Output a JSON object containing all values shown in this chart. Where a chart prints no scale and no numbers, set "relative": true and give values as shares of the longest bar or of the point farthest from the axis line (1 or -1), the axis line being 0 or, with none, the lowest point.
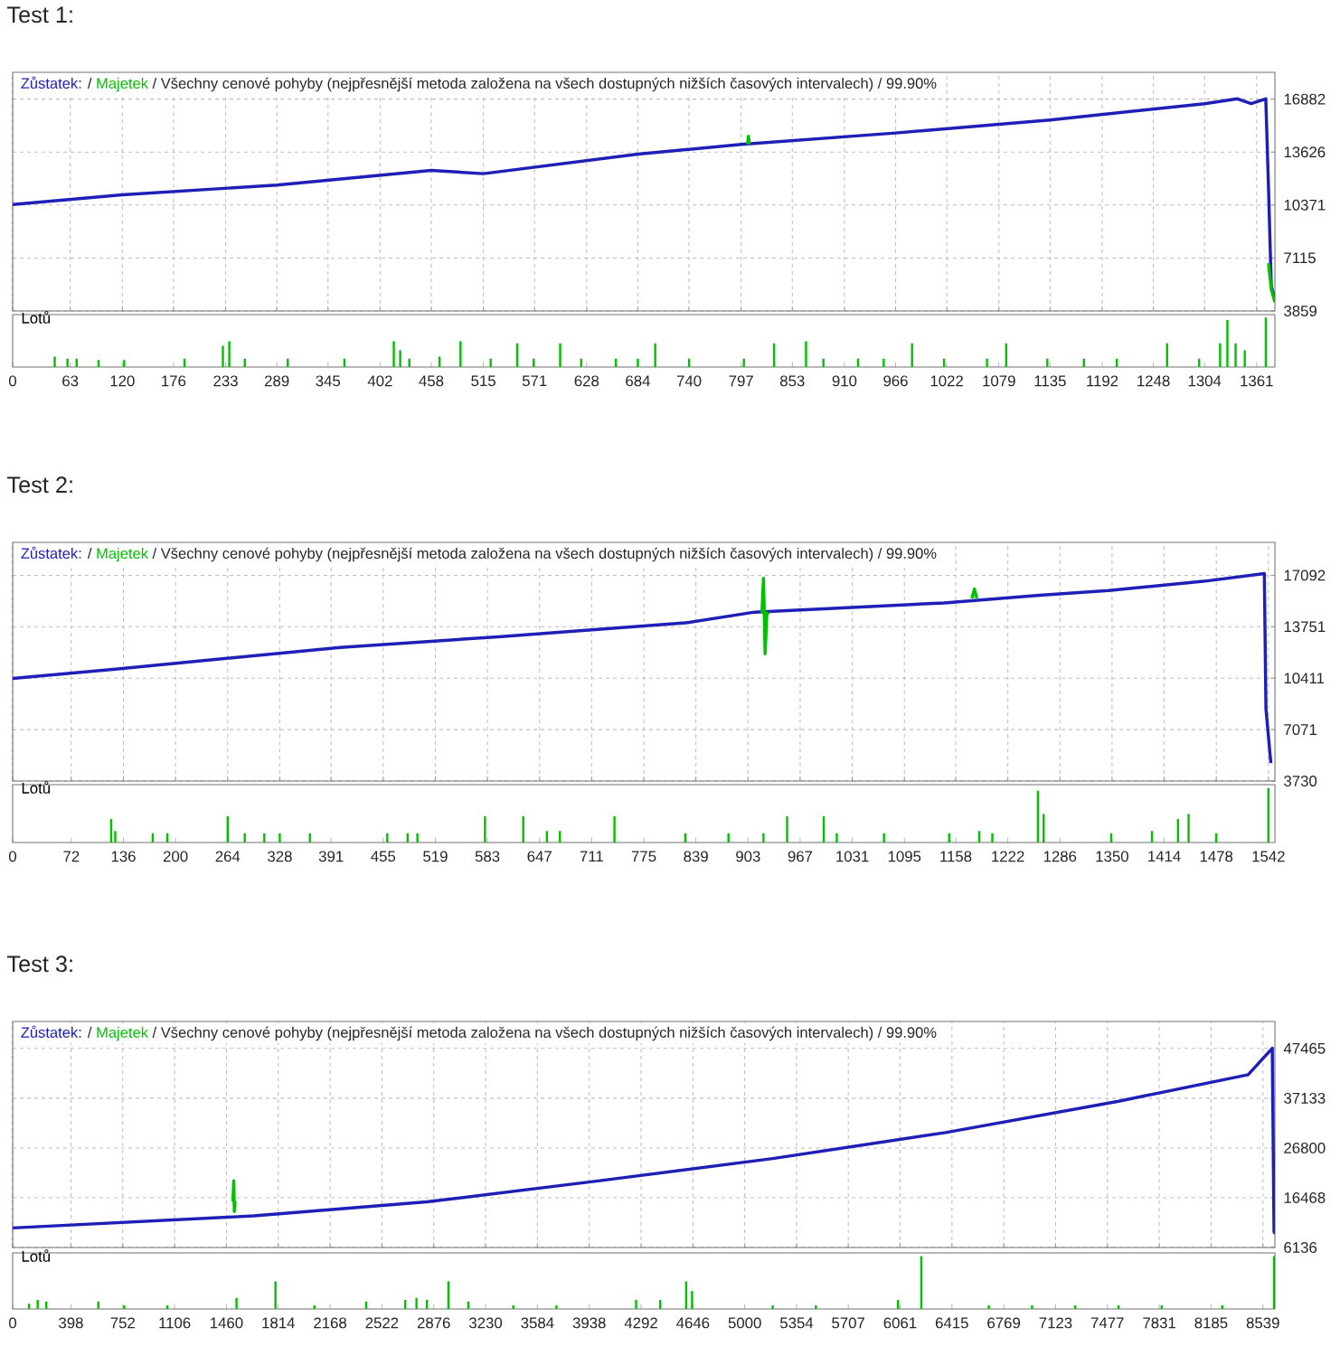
{
  "chart_data": [
    {
      "type": "line",
      "title": "Test 1:",
      "annotations": [
        "/"
      ],
      "subtitle": "/ Všechny cenové pohyby (nejpřesnější metoda založena na všech dostupných nižších časových intervalech) / 99.90%",
      "legend": "top left",
      "grid": true,
      "tick_labels": "y",
      "xlim": [
        0,
        1381
      ],
      "xticks": [
        0,
        63,
        120,
        176,
        233,
        289,
        345,
        402,
        458,
        515,
        571,
        628,
        684,
        740,
        797,
        853,
        910,
        966,
        1022,
        1079,
        1135,
        1192,
        1248,
        1304,
        1361
      ],
      "ylim": [
        3859,
        18530
      ],
      "yticks": [
        3859,
        7115,
        10371,
        13626,
        16882
      ],
      "series": [
        {
          "name": "Zůstatek:",
          "color": "#1f1fb8",
          "x": [
            0,
            120,
            289,
            458,
            515,
            684,
            797,
            966,
            1135,
            1304,
            1340,
            1355,
            1371,
            1374,
            1377,
            1381
          ],
          "values": [
            10400,
            11000,
            11600,
            12500,
            12300,
            13500,
            14100,
            14800,
            15600,
            16600,
            16900,
            16600,
            16900,
            11400,
            5400,
            4500
          ]
        },
        {
          "name": "Majetek",
          "color": "#00c000",
          "x": [
            804,
            805,
            806,
            1000,
            1374,
            1377,
            1381
          ],
          "values": [
            14100,
            14600,
            14100,
            null,
            6800,
            5200,
            4400
          ]
        }
      ]
    },
    {
      "type": "bar",
      "title": "Lotů",
      "relative": true,
      "color": "#00c000",
      "tick_labels": "x",
      "xlim": [
        0,
        1381
      ],
      "xticks": [
        0,
        63,
        120,
        176,
        233,
        289,
        345,
        402,
        458,
        515,
        571,
        628,
        684,
        740,
        797,
        853,
        910,
        966,
        1022,
        1079,
        1135,
        1192,
        1248,
        1304,
        1361
      ],
      "x": [
        46,
        60,
        70,
        94,
        122,
        188,
        230,
        237,
        254,
        301,
        363,
        417,
        424,
        434,
        467,
        490,
        523,
        552,
        570,
        599,
        622,
        660,
        684,
        703,
        740,
        800,
        833,
        868,
        887,
        925,
        953,
        984,
        1019,
        1066,
        1087,
        1132,
        1172,
        1208,
        1263,
        1298,
        1321,
        1329,
        1338,
        1348,
        1371
      ],
      "values": [
        0.21,
        0.17,
        0.17,
        0.14,
        0.14,
        0.17,
        0.43,
        0.52,
        0.17,
        0.17,
        0.17,
        0.52,
        0.34,
        0.17,
        0.21,
        0.52,
        0.17,
        0.48,
        0.17,
        0.48,
        0.17,
        0.17,
        0.17,
        0.48,
        0.17,
        0.17,
        0.48,
        0.52,
        0.17,
        0.17,
        0.17,
        0.48,
        0.17,
        0.17,
        0.48,
        0.17,
        0.17,
        0.17,
        0.48,
        0.17,
        0.48,
        0.95,
        0.48,
        0.34,
        1
      ]
    },
    {
      "type": "line",
      "title": "Test 2:",
      "annotations": [
        "/"
      ],
      "subtitle": "/ Všechny cenové pohyby (nejpřesnější metoda založena na všech dostupných nižších časových intervalech) / 99.90%",
      "legend": "top left",
      "grid": true,
      "tick_labels": "y",
      "xlim": [
        0,
        1550
      ],
      "xticks": [
        0,
        72,
        136,
        200,
        264,
        328,
        391,
        455,
        519,
        583,
        647,
        711,
        775,
        839,
        903,
        967,
        1031,
        1095,
        1158,
        1222,
        1286,
        1350,
        1414,
        1478,
        1542
      ],
      "ylim": [
        3730,
        19230
      ],
      "yticks": [
        3730,
        7071,
        10411,
        13751,
        17092
      ],
      "series": [
        {
          "name": "Zůstatek:",
          "color": "#1f1fb8",
          "x": [
            0,
            126,
            402,
            596,
            826,
            911,
            1144,
            1261,
            1346,
            1462,
            1537,
            1539,
            1545
          ],
          "values": [
            10400,
            11000,
            12400,
            13100,
            14000,
            14700,
            15300,
            15800,
            16100,
            16700,
            17200,
            8400,
            4900
          ]
        },
        {
          "name": "Majetek",
          "color": "#00c000",
          "x": [
            920,
            922,
            924,
            926,
            928,
            1050,
            1178,
            1181,
            1184
          ],
          "values": [
            14600,
            16900,
            12000,
            14500,
            14700,
            null,
            15600,
            16200,
            15600
          ]
        }
      ]
    },
    {
      "type": "bar",
      "title": "Lotů",
      "relative": true,
      "color": "#00c000",
      "tick_labels": "x",
      "xlim": [
        0,
        1550
      ],
      "xticks": [
        0,
        72,
        136,
        200,
        264,
        328,
        391,
        455,
        519,
        583,
        647,
        711,
        775,
        839,
        903,
        967,
        1031,
        1095,
        1158,
        1222,
        1286,
        1350,
        1414,
        1478,
        1542
      ],
      "x": [
        121,
        126,
        172,
        190,
        264,
        285,
        309,
        328,
        365,
        460,
        485,
        497,
        580,
        627,
        656,
        672,
        739,
        826,
        879,
        922,
        951,
        996,
        1012,
        1070,
        1150,
        1187,
        1203,
        1259,
        1266,
        1349,
        1399,
        1431,
        1444,
        1478,
        1542
      ],
      "values": [
        0.43,
        0.21,
        0.17,
        0.17,
        0.48,
        0.17,
        0.17,
        0.17,
        0.17,
        0.17,
        0.17,
        0.17,
        0.48,
        0.48,
        0.21,
        0.21,
        0.48,
        0.17,
        0.17,
        0.17,
        0.48,
        0.48,
        0.17,
        0.17,
        0.17,
        0.21,
        0.17,
        0.95,
        0.52,
        0.17,
        0.21,
        0.43,
        0.52,
        0.17,
        1
      ]
    },
    {
      "type": "line",
      "title": "Test 3:",
      "annotations": [
        "/"
      ],
      "subtitle": "/ Všechny cenové pohyby (nejpřesnější metoda založena na všech dostupných nižších časových intervalech) / 99.90%",
      "legend": "top left",
      "grid": true,
      "tick_labels": "y",
      "xlim": [
        0,
        8621
      ],
      "xticks": [
        0,
        398,
        752,
        1106,
        1460,
        1814,
        2168,
        2522,
        2876,
        3230,
        3584,
        3938,
        4292,
        4646,
        5000,
        5354,
        5707,
        6061,
        6415,
        6769,
        7123,
        7477,
        7831,
        8185,
        8539
      ],
      "ylim": [
        6136,
        53055
      ],
      "yticks": [
        6136,
        16468,
        26800,
        37133,
        47465
      ],
      "series": [
        {
          "name": "Zůstatek:",
          "color": "#1f1fb8",
          "x": [
            0,
            1647,
            2829,
            4010,
            5191,
            6372,
            7553,
            8438,
            8603,
            8615,
            8621
          ],
          "values": [
            10200,
            12700,
            15600,
            20000,
            24600,
            30000,
            36500,
            42000,
            47500,
            9400,
            9000
          ]
        },
        {
          "name": "Majetek",
          "color": "#00c000",
          "x": [
            1505,
            1510,
            1514,
            1519
          ],
          "values": [
            15700,
            20000,
            13600,
            15800
          ]
        }
      ]
    },
    {
      "type": "bar",
      "title": "Lotů",
      "relative": true,
      "color": "#00c000",
      "tick_labels": "x",
      "xlim": [
        0,
        8621
      ],
      "xticks": [
        0,
        398,
        752,
        1106,
        1460,
        1814,
        2168,
        2522,
        2876,
        3230,
        3584,
        3938,
        4292,
        4646,
        5000,
        5354,
        5707,
        6061,
        6415,
        6769,
        7123,
        7477,
        7831,
        8185,
        8539
      ],
      "x": [
        112,
        171,
        230,
        585,
        762,
        1057,
        1529,
        1795,
        2061,
        2415,
        2681,
        2758,
        2829,
        2976,
        3112,
        3419,
        3714,
        4258,
        4423,
        4600,
        4640,
        5191,
        5486,
        6047,
        6206,
        6667,
        6962,
        7257,
        7553,
        7848,
        8261,
        8615
      ],
      "values": [
        0.1,
        0.17,
        0.14,
        0.14,
        0.07,
        0.07,
        0.21,
        0.52,
        0.07,
        0.14,
        0.17,
        0.21,
        0.17,
        0.52,
        0.14,
        0.07,
        0.07,
        0.17,
        0.17,
        0.52,
        0.34,
        0.07,
        0.07,
        0.17,
        1,
        0.07,
        0.07,
        0.07,
        0.07,
        0.07,
        0.07,
        1
      ]
    }
  ]
}
